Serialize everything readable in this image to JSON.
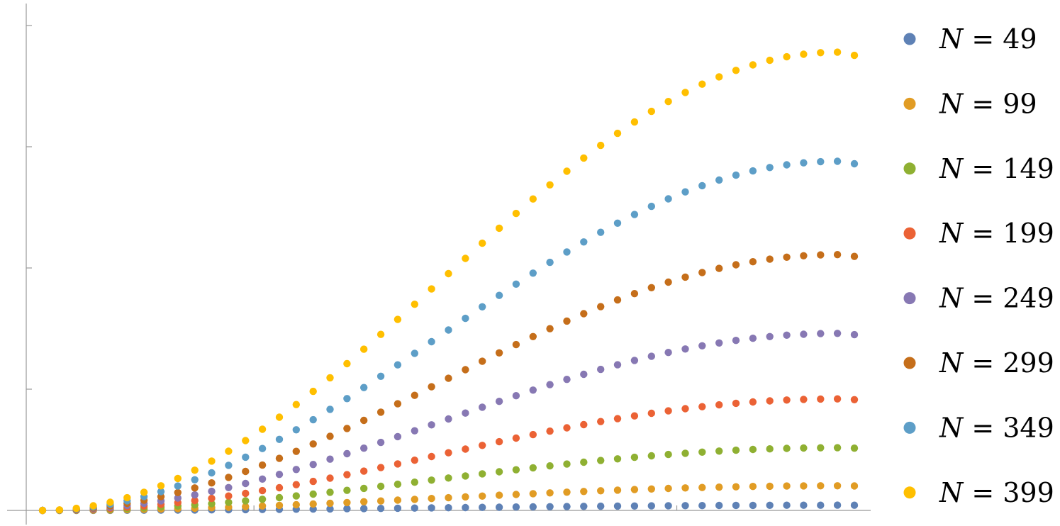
{
  "chart_data": {
    "type": "scatter",
    "x_range": [
      0,
      48
    ],
    "y_range": [
      -0.05,
      4.2
    ],
    "grid": false,
    "legend_position": "right",
    "x": [
      0,
      1,
      2,
      3,
      4,
      5,
      6,
      7,
      8,
      9,
      10,
      11,
      12,
      13,
      14,
      15,
      16,
      17,
      18,
      19,
      20,
      21,
      22,
      23,
      24,
      25,
      26,
      27,
      28,
      29,
      30,
      31,
      32,
      33,
      34,
      35,
      36,
      37,
      38,
      39,
      40,
      41,
      42,
      43,
      44,
      45,
      46,
      47,
      48
    ],
    "series": [
      {
        "name": "N = 49",
        "var": "N",
        "eq": "= 49",
        "color": "#5e81b5",
        "amp": 0.043
      },
      {
        "name": "N = 99",
        "var": "N",
        "eq": "= 99",
        "color": "#e19c24",
        "amp": 0.203
      },
      {
        "name": "N = 149",
        "var": "N",
        "eq": "= 149",
        "color": "#8fb032",
        "amp": 0.517
      },
      {
        "name": "N = 199",
        "var": "N",
        "eq": "= 199",
        "color": "#eb6235",
        "amp": 0.92
      },
      {
        "name": "N = 249",
        "var": "N",
        "eq": "= 249",
        "color": "#8778b3",
        "amp": 1.46
      },
      {
        "name": "N = 299",
        "var": "N",
        "eq": "= 299",
        "color": "#c56e1a",
        "amp": 2.11
      },
      {
        "name": "N = 349",
        "var": "N",
        "eq": "= 349",
        "color": "#5d9ec7",
        "amp": 2.88
      },
      {
        "name": "N = 399",
        "var": "N",
        "eq": "= 399",
        "color": "#ffbf00",
        "amp": 3.78
      }
    ]
  }
}
